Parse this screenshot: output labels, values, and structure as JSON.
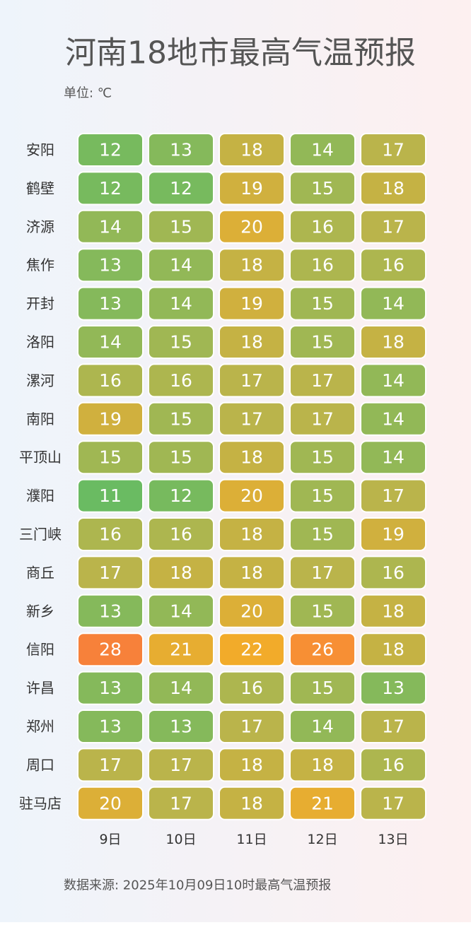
{
  "chart_data": {
    "type": "heatmap",
    "title": "河南18地市最高气温预报",
    "subtitle": "单位: ℃",
    "source": "数据来源: 2025年10月09日10时最高气温预报",
    "rows": [
      "安阳",
      "鹤壁",
      "济源",
      "焦作",
      "开封",
      "洛阳",
      "漯河",
      "南阳",
      "平顶山",
      "濮阳",
      "三门峡",
      "商丘",
      "新乡",
      "信阳",
      "许昌",
      "郑州",
      "周口",
      "驻马店"
    ],
    "columns": [
      "9日",
      "10日",
      "11日",
      "12日",
      "13日"
    ],
    "values": [
      [
        12,
        13,
        18,
        14,
        17
      ],
      [
        12,
        12,
        19,
        15,
        18
      ],
      [
        14,
        15,
        20,
        16,
        17
      ],
      [
        13,
        14,
        18,
        16,
        16
      ],
      [
        13,
        14,
        19,
        15,
        14
      ],
      [
        14,
        15,
        18,
        15,
        18
      ],
      [
        16,
        16,
        17,
        17,
        14
      ],
      [
        19,
        15,
        17,
        17,
        14
      ],
      [
        15,
        15,
        18,
        15,
        14
      ],
      [
        11,
        12,
        20,
        15,
        17
      ],
      [
        16,
        16,
        18,
        15,
        19
      ],
      [
        17,
        18,
        18,
        17,
        16
      ],
      [
        13,
        14,
        20,
        15,
        18
      ],
      [
        28,
        21,
        22,
        26,
        18
      ],
      [
        13,
        14,
        16,
        15,
        13
      ],
      [
        13,
        13,
        17,
        14,
        17
      ],
      [
        17,
        17,
        18,
        18,
        16
      ],
      [
        20,
        17,
        18,
        21,
        17
      ]
    ],
    "colors": [
      "#6abb62",
      "#b6b54d",
      "#f6aa28",
      "#f7813a"
    ]
  }
}
